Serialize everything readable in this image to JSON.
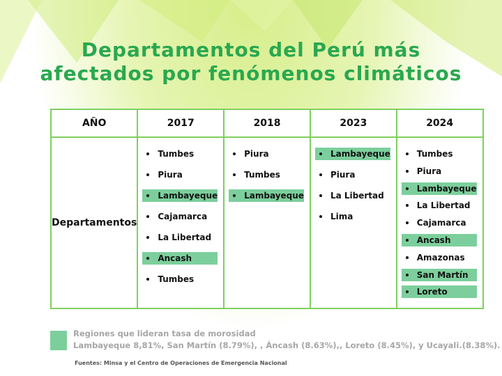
{
  "title": {
    "line1": "Departamentos del Perú más",
    "line2": "afectados por fenómenos climáticos"
  },
  "table": {
    "headers": [
      "AÑO",
      "2017",
      "2018",
      "2023",
      "2024"
    ],
    "row_label": "Departamentos",
    "columns": [
      {
        "year": "2017",
        "items": [
          {
            "name": "Tumbes",
            "highlight": false
          },
          {
            "name": "Piura",
            "highlight": false
          },
          {
            "name": "Lambayeque",
            "highlight": true
          },
          {
            "name": "Cajamarca",
            "highlight": false
          },
          {
            "name": "La Libertad",
            "highlight": false
          },
          {
            "name": "Ancash",
            "highlight": true
          },
          {
            "name": "Tumbes",
            "highlight": false
          }
        ]
      },
      {
        "year": "2018",
        "items": [
          {
            "name": "Piura",
            "highlight": false
          },
          {
            "name": "Tumbes",
            "highlight": false
          },
          {
            "name": "Lambayeque",
            "highlight": true
          }
        ]
      },
      {
        "year": "2023",
        "items": [
          {
            "name": "Lambayeque",
            "highlight": true
          },
          {
            "name": "Piura",
            "highlight": false
          },
          {
            "name": "La Libertad",
            "highlight": false
          },
          {
            "name": "Lima",
            "highlight": false
          }
        ]
      },
      {
        "year": "2024",
        "items": [
          {
            "name": "Tumbes",
            "highlight": false
          },
          {
            "name": "Piura",
            "highlight": false
          },
          {
            "name": "Lambayeque",
            "highlight": true
          },
          {
            "name": "La Libertad",
            "highlight": false
          },
          {
            "name": "Cajamarca",
            "highlight": false
          },
          {
            "name": "Ancash",
            "highlight": true
          },
          {
            "name": "Amazonas",
            "highlight": false
          },
          {
            "name": "San Martín",
            "highlight": true
          },
          {
            "name": "Loreto",
            "highlight": true
          }
        ]
      }
    ]
  },
  "legend": {
    "title": "Regiones que lideran tasa de morosidad",
    "text": "Lambayeque 8,81%, San Martín (8.79%), , Áncash (8.63%),, Loreto (8.45%), y Ucayali.(8.38%)."
  },
  "source": "Fuentes: Minsa y el Centro de Operaciones de Emergencia Nacional",
  "colors": {
    "title": "#2aa84f",
    "border": "#7fcf5f",
    "highlight": "#7ccf9c",
    "legend_text": "#a6a6a6"
  }
}
